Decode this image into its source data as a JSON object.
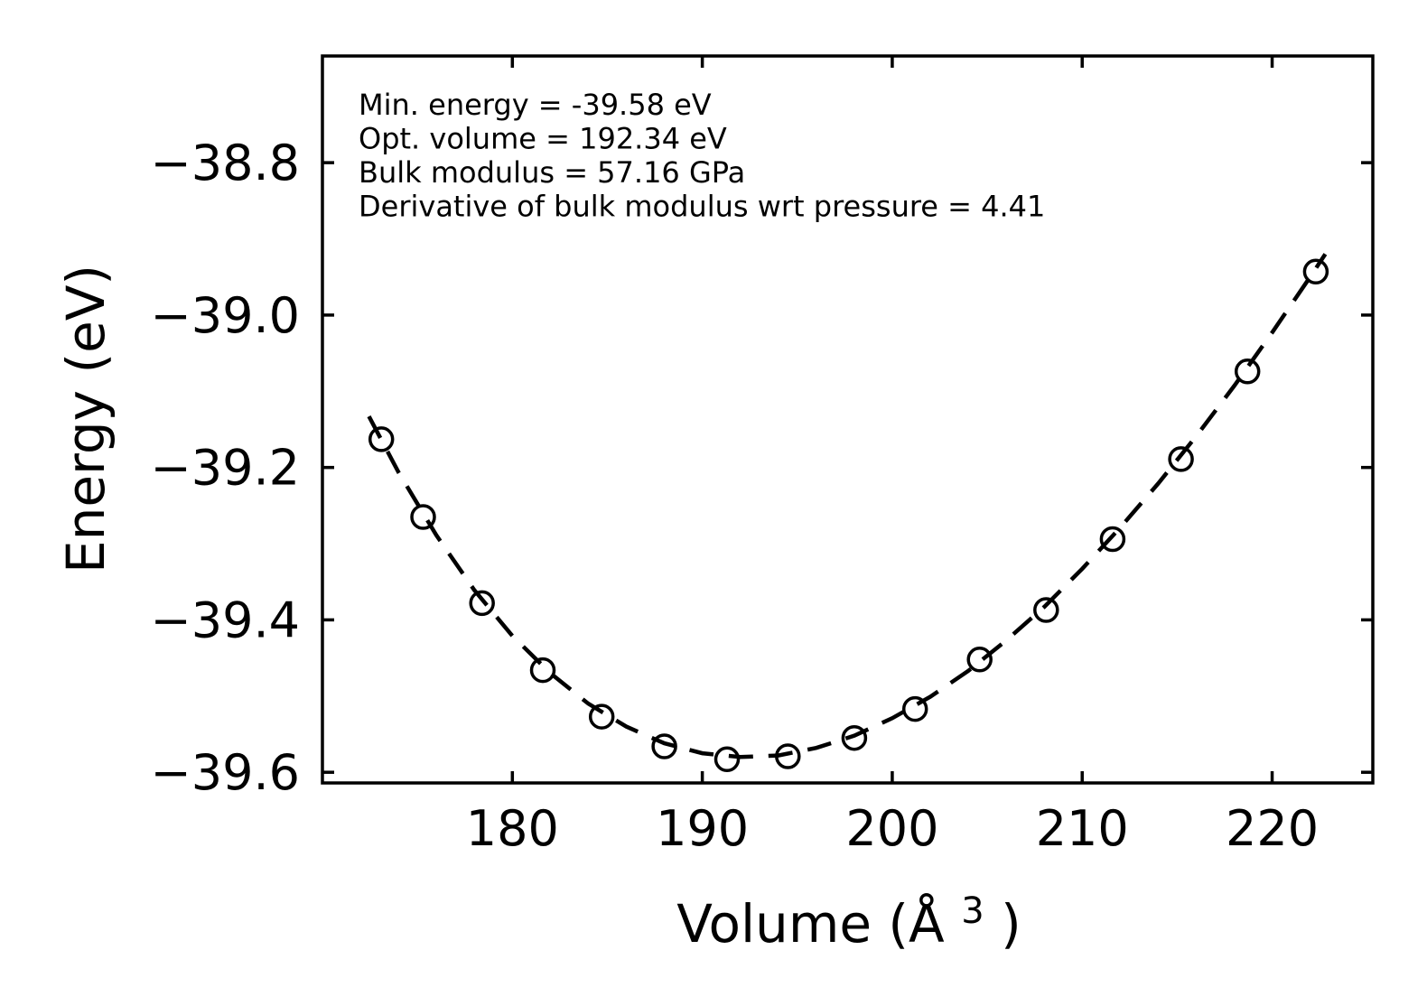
{
  "figure": {
    "background": "#ffffff",
    "foreground": "#000000"
  },
  "chart_data": {
    "type": "scatter",
    "title": "",
    "xlabel": {
      "main": "Volume (Å",
      "sup": "3",
      "close": ")"
    },
    "ylabel": "Energy (eV)",
    "xlim": [
      170.0,
      225.3
    ],
    "ylim": [
      -39.614,
      -38.66
    ],
    "grid": false,
    "legend": "none",
    "tick_direction": "in",
    "xticks": [
      {
        "value": 180,
        "label": "180"
      },
      {
        "value": 190,
        "label": "190"
      },
      {
        "value": 200,
        "label": "200"
      },
      {
        "value": 210,
        "label": "210"
      },
      {
        "value": 220,
        "label": "220"
      }
    ],
    "yticks": [
      {
        "value": -38.8,
        "label": "−38.8"
      },
      {
        "value": -39.0,
        "label": "−39.0"
      },
      {
        "value": -39.2,
        "label": "−39.2"
      },
      {
        "value": -39.4,
        "label": "−39.4"
      },
      {
        "value": -39.6,
        "label": "−39.6"
      }
    ],
    "annotation": {
      "lines": [
        "Min. energy = -39.58 eV",
        "Opt. volume = 192.34 eV",
        "Bulk modulus = 57.16 GPa",
        "Derivative of bulk modulus wrt pressure = 4.41"
      ]
    },
    "fit_params": {
      "min_energy_eV": -39.58,
      "opt_volume": 192.34,
      "bulk_modulus_GPa": 57.16,
      "bulk_modulus_pressure_derivative": 4.41
    },
    "series": [
      {
        "name": "calculated-points",
        "kind": "scatter",
        "marker": "open-circle",
        "marker_radius": 12.5,
        "marker_stroke": 3.5,
        "color": "#000000",
        "x": [
          173.1,
          175.3,
          178.4,
          181.6,
          184.7,
          188.0,
          191.3,
          194.5,
          198.0,
          201.2,
          204.6,
          208.1,
          211.6,
          215.2,
          218.7,
          222.3
        ],
        "y": [
          -39.163,
          -39.265,
          -39.378,
          -39.466,
          -39.527,
          -39.566,
          -39.583,
          -39.579,
          -39.555,
          -39.517,
          -39.452,
          -39.387,
          -39.294,
          -39.189,
          -39.074,
          -38.943
        ]
      },
      {
        "name": "birch-murnaghan-fit",
        "kind": "line",
        "style": "dashed",
        "line_width": 4.5,
        "dash": [
          27,
          17
        ],
        "color": "#000000",
        "x": [
          172.45,
          174,
          176,
          178,
          180,
          182,
          184,
          186,
          188,
          190,
          192,
          194,
          196,
          198,
          200,
          202,
          204,
          206,
          208,
          210,
          212,
          214,
          216,
          218,
          220,
          222,
          222.8
        ],
        "y": [
          -39.133,
          -39.206,
          -39.289,
          -39.361,
          -39.421,
          -39.47,
          -39.51,
          -39.54,
          -39.562,
          -39.575,
          -39.58,
          -39.578,
          -39.568,
          -39.552,
          -39.529,
          -39.501,
          -39.467,
          -39.427,
          -39.383,
          -39.333,
          -39.279,
          -39.221,
          -39.159,
          -39.093,
          -39.023,
          -38.95,
          -38.92
        ]
      }
    ]
  }
}
